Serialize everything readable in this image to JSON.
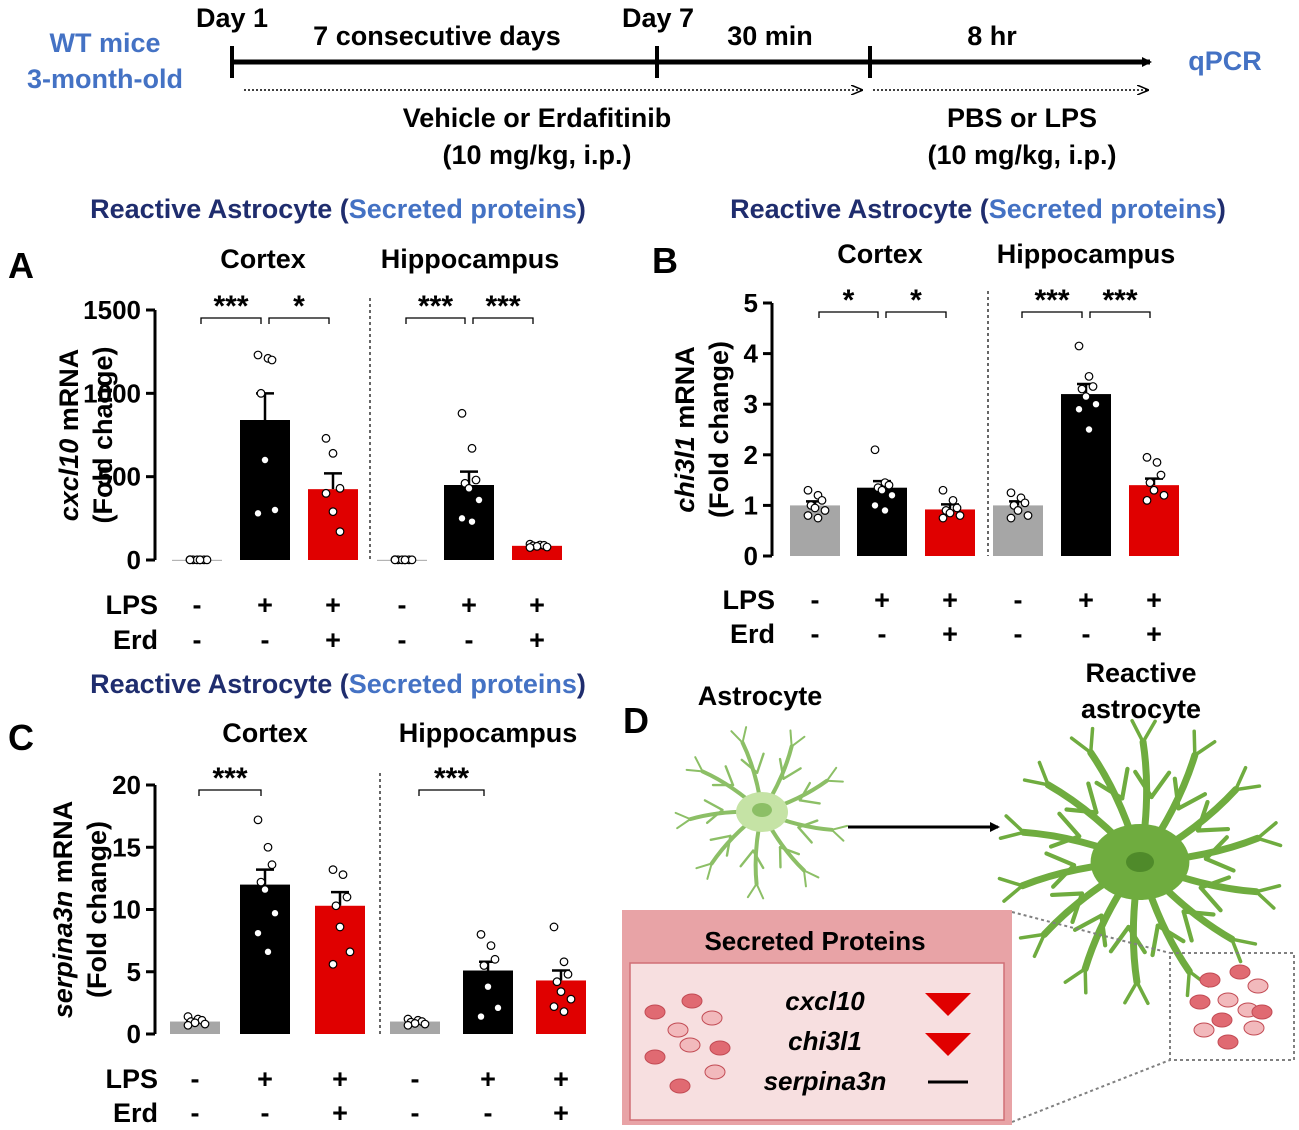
{
  "colors": {
    "blue_text": "#4472c4",
    "navy_text": "#1f2d6e",
    "gray_bar": "#a6a6a6",
    "black_bar": "#000000",
    "red_bar": "#e00000",
    "astro_light": "#c5e3a5",
    "astro_dark": "#6fac3f",
    "secreted_header": "#e8a3a6",
    "secreted_body": "#f7dfe0",
    "dot_fill": "#e06a72"
  },
  "timeline": {
    "left_label_line1": "WT mice",
    "left_label_line2": "3-month-old",
    "day1": "Day 1",
    "consecutive": "7 consecutive days",
    "day7": "Day 7",
    "thirty_min": "30 min",
    "eight_hr": "8 hr",
    "end_label": "qPCR",
    "treatment1_line1": "Vehicle or Erdafitinib",
    "treatment1_line2": "(10 mg/kg, i.p.)",
    "treatment2_line1": "PBS or LPS",
    "treatment2_line2": "(10 mg/kg, i.p.)"
  },
  "panel_title": {
    "part1": "Reactive Astrocyte (",
    "part2": "Secreted proteins",
    "part3": ")"
  },
  "region_labels": [
    "Cortex",
    "Hippocampus"
  ],
  "row_labels": {
    "lps": "LPS",
    "erd": "Erd"
  },
  "lps_signs": [
    "-",
    "+",
    "+",
    "-",
    "+",
    "+"
  ],
  "erd_signs": [
    "-",
    "-",
    "+",
    "-",
    "-",
    "+"
  ],
  "chart_data": [
    {
      "panel": "A",
      "type": "bar",
      "ylabel_italic": "cxcl10",
      "ylabel_rest": " mRNA",
      "ylabel_line2": "(Fold change)",
      "ylim": [
        0,
        1500
      ],
      "yticks": [
        0,
        500,
        1000,
        1500
      ],
      "groups": [
        "Cortex",
        "Hippocampus"
      ],
      "conditions": [
        "Vehicle",
        "LPS",
        "LPS+Erd"
      ],
      "values": [
        1,
        840,
        425,
        1,
        450,
        85
      ],
      "errors": [
        1,
        160,
        95,
        1,
        80,
        10
      ],
      "points": [
        [
          2,
          1,
          1,
          1,
          1,
          1,
          1,
          1
        ],
        [
          1230,
          1210,
          1200,
          1000,
          600,
          300,
          280
        ],
        [
          730,
          640,
          430,
          400,
          290,
          170
        ],
        [
          2,
          1,
          1,
          1,
          1,
          1,
          1,
          1
        ],
        [
          880,
          670,
          480,
          460,
          430,
          360,
          250,
          230
        ],
        [
          95,
          90,
          88,
          85,
          82,
          78,
          75
        ]
      ],
      "significance": [
        {
          "from": 0,
          "to": 1,
          "label": "***"
        },
        {
          "from": 1,
          "to": 2,
          "label": "*"
        },
        {
          "from": 3,
          "to": 4,
          "label": "***"
        },
        {
          "from": 4,
          "to": 5,
          "label": "***"
        }
      ]
    },
    {
      "panel": "B",
      "type": "bar",
      "ylabel_italic": "chi3l1",
      "ylabel_rest": " mRNA",
      "ylabel_line2": "(Fold change)",
      "ylim": [
        0,
        5
      ],
      "yticks": [
        0,
        1,
        2,
        3,
        4,
        5
      ],
      "groups": [
        "Cortex",
        "Hippocampus"
      ],
      "conditions": [
        "Vehicle",
        "LPS",
        "LPS+Erd"
      ],
      "values": [
        1.0,
        1.35,
        0.92,
        1.0,
        3.2,
        1.4
      ],
      "errors": [
        0.08,
        0.13,
        0.1,
        0.08,
        0.2,
        0.13
      ],
      "points": [
        [
          1.3,
          1.2,
          1.1,
          1.0,
          0.95,
          0.9,
          0.8,
          0.75
        ],
        [
          2.1,
          1.45,
          1.4,
          1.35,
          1.3,
          1.2,
          1.0,
          0.9
        ],
        [
          1.3,
          1.1,
          0.95,
          0.9,
          0.85,
          0.8,
          0.75
        ],
        [
          1.25,
          1.15,
          1.05,
          1.0,
          0.9,
          0.8,
          0.75
        ],
        [
          4.15,
          3.55,
          3.35,
          3.3,
          3.15,
          3.0,
          2.9,
          2.5
        ],
        [
          1.95,
          1.85,
          1.6,
          1.45,
          1.3,
          1.2,
          1.1
        ]
      ],
      "significance": [
        {
          "from": 0,
          "to": 1,
          "label": "*"
        },
        {
          "from": 1,
          "to": 2,
          "label": "*"
        },
        {
          "from": 3,
          "to": 4,
          "label": "***"
        },
        {
          "from": 4,
          "to": 5,
          "label": "***"
        }
      ]
    },
    {
      "panel": "C",
      "type": "bar",
      "ylabel_italic": "serpina3n",
      "ylabel_rest": " mRNA",
      "ylabel_line2": "(Fold change)",
      "ylim": [
        0,
        20
      ],
      "yticks": [
        0,
        5,
        10,
        15,
        20
      ],
      "groups": [
        "Cortex",
        "Hippocampus"
      ],
      "conditions": [
        "Vehicle",
        "LPS",
        "LPS+Erd"
      ],
      "values": [
        1.0,
        12.0,
        10.3,
        1.0,
        5.1,
        4.3
      ],
      "errors": [
        0.1,
        1.2,
        1.1,
        0.1,
        0.7,
        0.8
      ],
      "points": [
        [
          1.4,
          1.2,
          1.1,
          1.0,
          0.9,
          0.8,
          0.7
        ],
        [
          17.2,
          15.0,
          13.6,
          12.2,
          11.6,
          9.7,
          8.1,
          6.6
        ],
        [
          13.2,
          12.8,
          11.0,
          10.3,
          8.6,
          6.6,
          5.6
        ],
        [
          1.2,
          1.1,
          1.0,
          0.95,
          0.85,
          0.8,
          0.7
        ],
        [
          8.0,
          7.1,
          6.0,
          5.5,
          3.8,
          2.1,
          1.4
        ],
        [
          8.6,
          5.8,
          4.8,
          4.2,
          3.4,
          2.8,
          2.2,
          1.8
        ]
      ],
      "significance": [
        {
          "from": 0,
          "to": 1,
          "label": "***"
        },
        {
          "from": 3,
          "to": 4,
          "label": "***"
        }
      ]
    }
  ],
  "panel_letters": {
    "a": "A",
    "b": "B",
    "c": "C",
    "d": "D"
  },
  "panel_d": {
    "astrocyte_label": "Astrocyte",
    "reactive_line1": "Reactive",
    "reactive_line2": "astrocyte",
    "secreted_title": "Secreted Proteins",
    "genes": [
      {
        "name": "cxcl10",
        "change": "down"
      },
      {
        "name": "chi3l1",
        "change": "down"
      },
      {
        "name": "serpina3n",
        "change": "none"
      }
    ]
  }
}
